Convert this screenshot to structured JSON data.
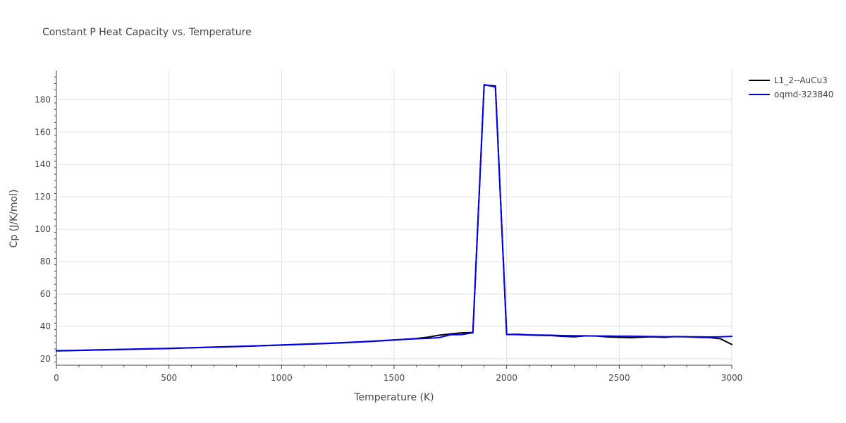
{
  "chart_data": {
    "type": "line",
    "title": "Constant P Heat Capacity vs. Temperature",
    "xlabel": "Temperature (K)",
    "ylabel": "Cp (J/K/mol)",
    "xlim": [
      0,
      3000
    ],
    "ylim": [
      16,
      198
    ],
    "x_ticks": [
      0,
      500,
      1000,
      1500,
      2000,
      2500,
      3000
    ],
    "y_ticks": [
      20,
      40,
      60,
      80,
      100,
      120,
      140,
      160,
      180
    ],
    "grid": true,
    "legend_position": "top-right",
    "series": [
      {
        "name": "L1_2--AuCu3",
        "color": "#000000",
        "x": [
          0,
          100,
          200,
          300,
          400,
          500,
          600,
          700,
          800,
          900,
          1000,
          1100,
          1200,
          1300,
          1400,
          1500,
          1600,
          1650,
          1700,
          1750,
          1800,
          1850,
          1900,
          1950,
          2000,
          2050,
          2100,
          2150,
          2200,
          2250,
          2300,
          2350,
          2400,
          2450,
          2500,
          2550,
          2600,
          2650,
          2700,
          2750,
          2800,
          2850,
          2900,
          2950,
          3000
        ],
        "y": [
          24.8,
          25.1,
          25.4,
          25.7,
          26.0,
          26.3,
          26.7,
          27.1,
          27.5,
          28.0,
          28.4,
          28.9,
          29.4,
          30.0,
          30.7,
          31.5,
          32.5,
          33.3,
          34.5,
          35.3,
          36.0,
          36.2,
          189.0,
          188.5,
          35.0,
          34.9,
          34.6,
          34.4,
          34.3,
          33.8,
          33.5,
          34.1,
          34.0,
          33.4,
          33.2,
          33.0,
          33.3,
          33.5,
          33.2,
          33.7,
          33.6,
          33.2,
          33.1,
          32.3,
          28.8
        ]
      },
      {
        "name": "oqmd-323840",
        "color": "#0000ee",
        "x": [
          0,
          100,
          200,
          300,
          400,
          500,
          600,
          700,
          800,
          900,
          1000,
          1100,
          1200,
          1300,
          1400,
          1500,
          1600,
          1650,
          1700,
          1750,
          1800,
          1850,
          1900,
          1950,
          2000,
          2050,
          2100,
          2150,
          2200,
          2250,
          2300,
          2350,
          2400,
          2450,
          2500,
          2550,
          2600,
          2650,
          2700,
          2750,
          2800,
          2850,
          2900,
          2950,
          3000
        ],
        "y": [
          25.0,
          25.2,
          25.5,
          25.8,
          26.1,
          26.4,
          26.8,
          27.2,
          27.6,
          28.0,
          28.5,
          29.0,
          29.5,
          30.1,
          30.8,
          31.6,
          32.3,
          32.6,
          33.0,
          34.8,
          34.9,
          36.0,
          189.3,
          187.8,
          35.0,
          35.1,
          34.7,
          34.6,
          34.5,
          34.3,
          34.2,
          34.1,
          34.0,
          34.0,
          33.9,
          33.9,
          33.8,
          33.7,
          33.6,
          33.6,
          33.5,
          33.5,
          33.4,
          33.5,
          33.8
        ]
      }
    ]
  }
}
